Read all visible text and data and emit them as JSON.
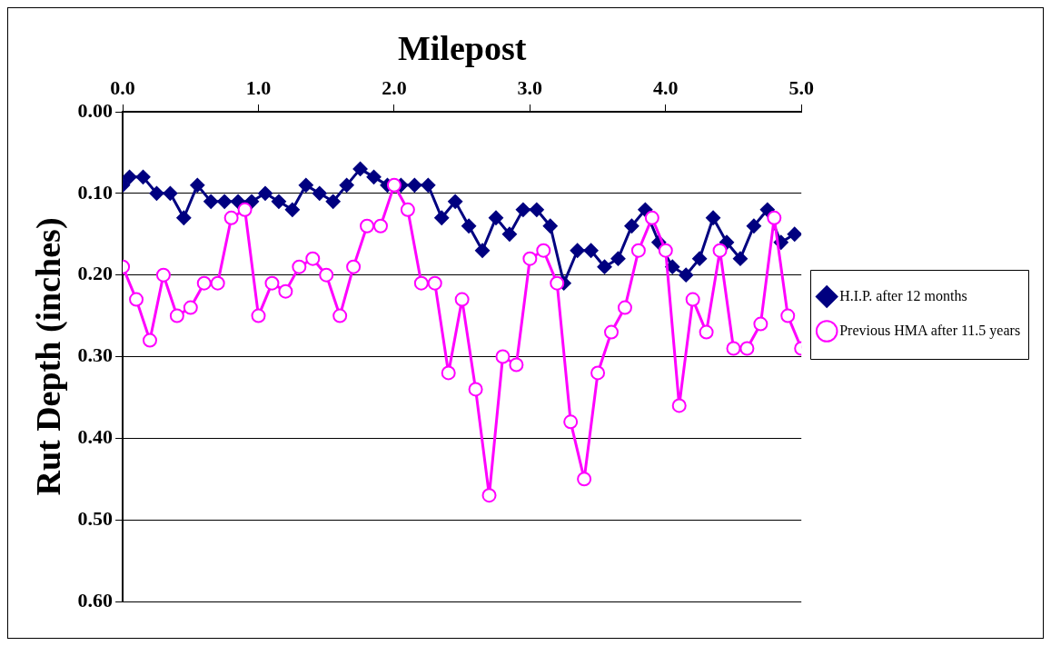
{
  "chart_data": {
    "type": "line",
    "xlabel": "Milepost",
    "ylabel": "Rut Depth (inches)",
    "xlim": [
      0,
      5
    ],
    "xticks": [
      {
        "value": 0,
        "label": "0.0"
      },
      {
        "value": 1,
        "label": "1.0"
      },
      {
        "value": 2,
        "label": "2.0"
      },
      {
        "value": 3,
        "label": "3.0"
      },
      {
        "value": 4,
        "label": "4.0"
      },
      {
        "value": 5,
        "label": "5.0"
      }
    ],
    "ylim": [
      0.6,
      0
    ],
    "yticks": [
      {
        "value": 0,
        "label": "0.00"
      },
      {
        "value": 0.1,
        "label": "0.10"
      },
      {
        "value": 0.2,
        "label": "0.20"
      },
      {
        "value": 0.3,
        "label": "0.30"
      },
      {
        "value": 0.4,
        "label": "0.40"
      },
      {
        "value": 0.5,
        "label": "0.50"
      },
      {
        "value": 0.6,
        "label": "0.60"
      }
    ],
    "grid": "y",
    "legend": "right",
    "series": [
      {
        "name": "H.I.P. after 12 months",
        "color": "#000080",
        "marker": "diamond",
        "x": [
          0,
          0.05,
          0.15,
          0.25,
          0.35,
          0.45,
          0.55,
          0.65,
          0.75,
          0.85,
          0.95,
          1.05,
          1.15,
          1.25,
          1.35,
          1.45,
          1.55,
          1.65,
          1.75,
          1.85,
          1.95,
          2.05,
          2.15,
          2.25,
          2.35,
          2.45,
          2.55,
          2.65,
          2.75,
          2.85,
          2.95,
          3.05,
          3.15,
          3.25,
          3.35,
          3.45,
          3.55,
          3.65,
          3.75,
          3.85,
          3.95,
          4.05,
          4.15,
          4.25,
          4.35,
          4.45,
          4.55,
          4.65,
          4.75,
          4.85,
          4.95
        ],
        "values": [
          0.09,
          0.08,
          0.08,
          0.1,
          0.1,
          0.13,
          0.09,
          0.11,
          0.11,
          0.11,
          0.11,
          0.1,
          0.11,
          0.12,
          0.09,
          0.1,
          0.11,
          0.09,
          0.07,
          0.08,
          0.09,
          0.09,
          0.09,
          0.09,
          0.13,
          0.11,
          0.14,
          0.17,
          0.13,
          0.15,
          0.12,
          0.12,
          0.14,
          0.21,
          0.17,
          0.17,
          0.19,
          0.18,
          0.14,
          0.12,
          0.16,
          0.19,
          0.2,
          0.18,
          0.13,
          0.16,
          0.18,
          0.14,
          0.12,
          0.16,
          0.15
        ]
      },
      {
        "name": "Previous HMA after 11.5 years",
        "color": "#ff00ff",
        "marker": "circle",
        "x": [
          0,
          0.1,
          0.2,
          0.3,
          0.4,
          0.5,
          0.6,
          0.7,
          0.8,
          0.9,
          1.0,
          1.1,
          1.2,
          1.3,
          1.4,
          1.5,
          1.6,
          1.7,
          1.8,
          1.9,
          2.0,
          2.1,
          2.2,
          2.3,
          2.4,
          2.5,
          2.6,
          2.7,
          2.8,
          2.9,
          3.0,
          3.1,
          3.2,
          3.3,
          3.4,
          3.5,
          3.6,
          3.7,
          3.8,
          3.9,
          4.0,
          4.1,
          4.2,
          4.3,
          4.4,
          4.5,
          4.6,
          4.7,
          4.8,
          4.9,
          5.0
        ],
        "values": [
          0.19,
          0.23,
          0.28,
          0.2,
          0.25,
          0.24,
          0.21,
          0.21,
          0.13,
          0.12,
          0.25,
          0.21,
          0.22,
          0.19,
          0.18,
          0.2,
          0.25,
          0.19,
          0.14,
          0.14,
          0.09,
          0.12,
          0.21,
          0.21,
          0.32,
          0.23,
          0.34,
          0.47,
          0.3,
          0.31,
          0.18,
          0.17,
          0.21,
          0.38,
          0.45,
          0.32,
          0.27,
          0.24,
          0.17,
          0.13,
          0.17,
          0.36,
          0.23,
          0.27,
          0.17,
          0.29,
          0.29,
          0.26,
          0.13,
          0.25,
          0.29
        ]
      }
    ]
  }
}
